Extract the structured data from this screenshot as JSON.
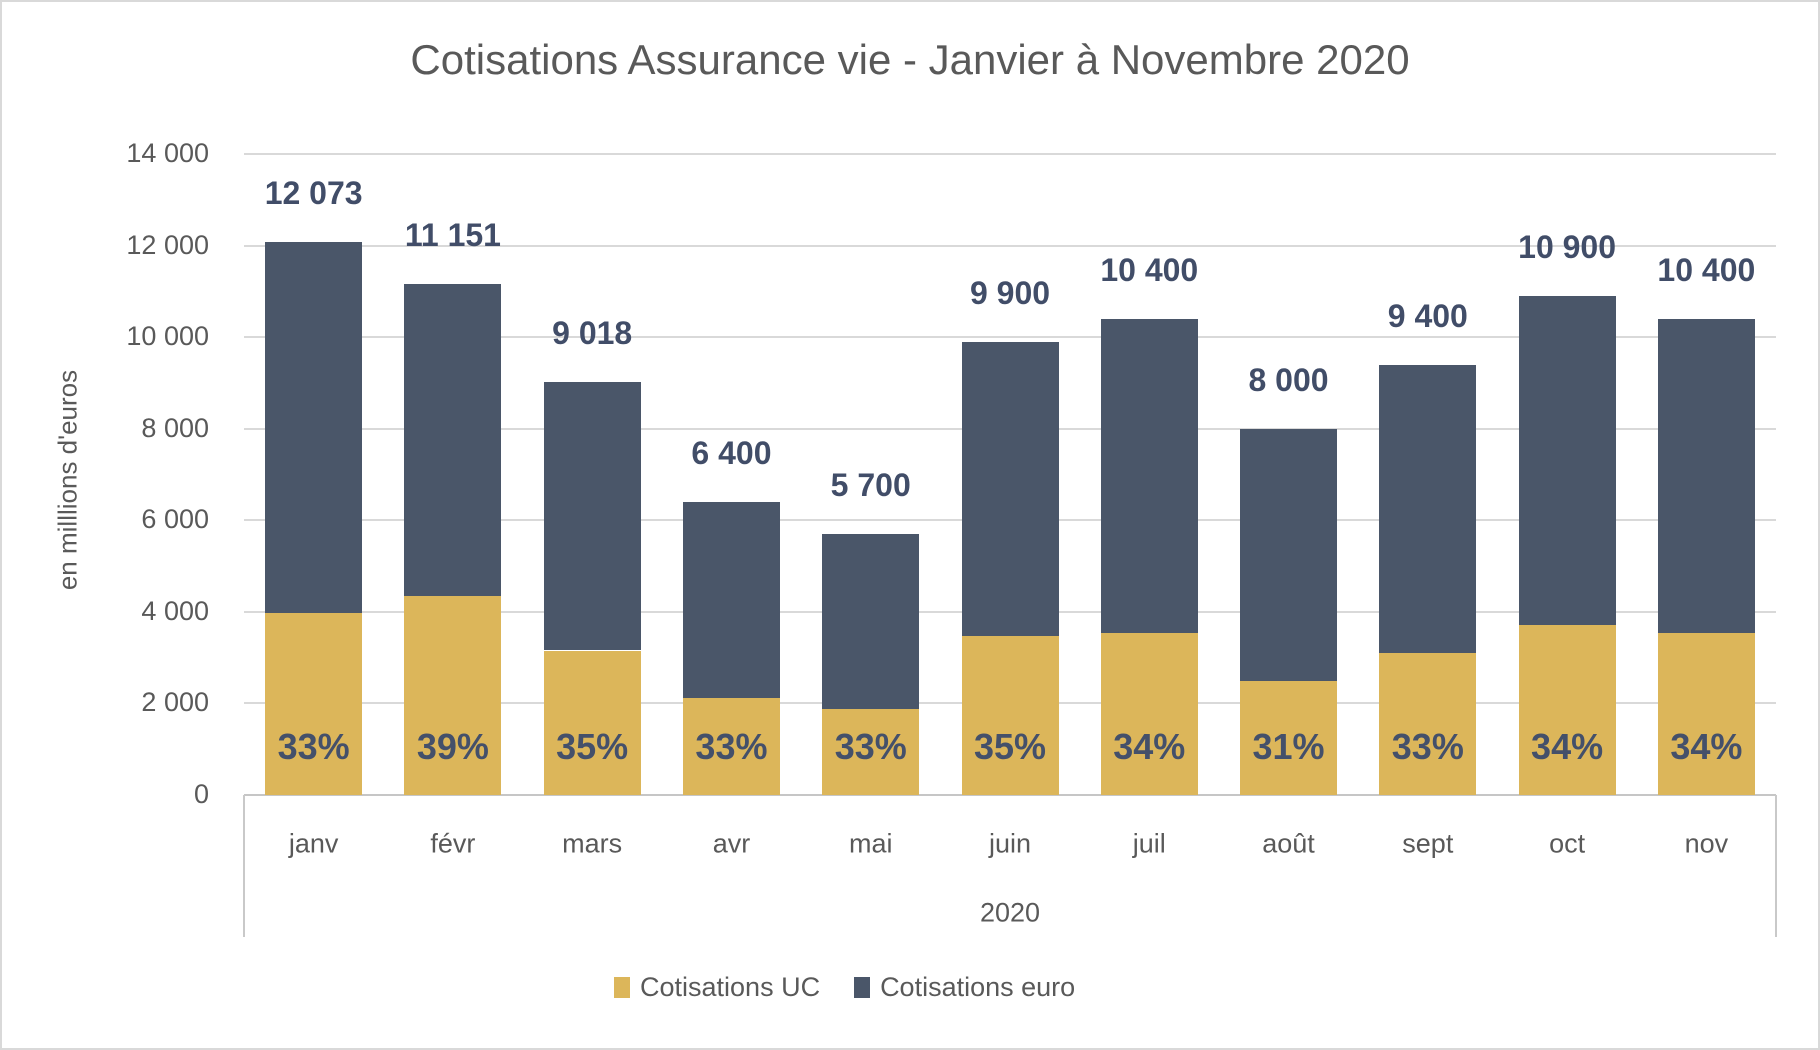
{
  "window": {
    "background": "#FFFFFF",
    "border_color": "#D9D9D9"
  },
  "colors": {
    "uc_gold": "#DCB65A",
    "euro_navy": "#4A5669",
    "data_label_navy": "#414D68",
    "pct_label_navy": "#44506A",
    "text_gray": "#595959",
    "gridline_gray": "#D9D9D9",
    "axis_line_gray": "#C6C6C6"
  },
  "chart_data": {
    "type": "bar",
    "stacked": true,
    "title": "Cotisations Assurance vie - Janvier à Novembre 2020",
    "ylabel": "en milllions d'euros",
    "xlabel": "",
    "year_group_label": "2020",
    "ylim": [
      0,
      14000
    ],
    "grid": true,
    "legend_position": "bottom",
    "ytick_values": [
      0,
      2000,
      4000,
      6000,
      8000,
      10000,
      12000,
      14000
    ],
    "ytick_labels": [
      "0",
      "2 000",
      "4 000",
      "6 000",
      "8 000",
      "10 000",
      "12 000",
      "14 000"
    ],
    "categories": [
      "janv",
      "févr",
      "mars",
      "avr",
      "mai",
      "juin",
      "juil",
      "août",
      "sept",
      "oct",
      "nov"
    ],
    "series": [
      {
        "name": "Cotisations UC",
        "color": "#DCB65A",
        "values": [
          3984,
          4349,
          3156,
          2112,
          1881,
          3465,
          3536,
          2480,
          3102,
          3706,
          3536
        ]
      },
      {
        "name": "Cotisations euro",
        "color": "#4A5669",
        "values": [
          8089,
          6802,
          5862,
          4288,
          3819,
          6435,
          6864,
          5520,
          6298,
          7194,
          6864
        ]
      }
    ],
    "totals": [
      12073,
      11151,
      9018,
      6400,
      5700,
      9900,
      10400,
      8000,
      9400,
      10900,
      10400
    ],
    "total_labels": [
      "12 073",
      "11 151",
      "9 018",
      "6 400",
      "5 700",
      "9 900",
      "10 400",
      "8 000",
      "9 400",
      "10 900",
      "10 400"
    ],
    "uc_share_labels": [
      "33%",
      "39%",
      "35%",
      "33%",
      "33%",
      "35%",
      "34%",
      "31%",
      "33%",
      "34%",
      "34%"
    ]
  }
}
